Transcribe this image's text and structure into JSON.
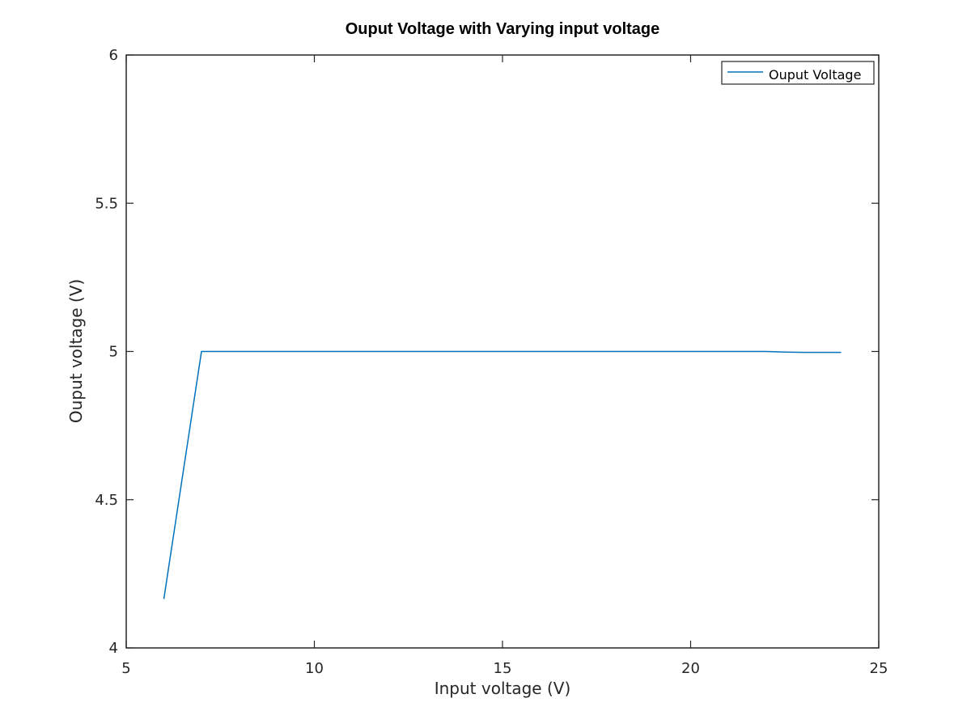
{
  "chart_data": {
    "type": "line",
    "title": "Ouput Voltage with Varying input voltage",
    "xlabel": "Input voltage (V)",
    "ylabel": "Ouput voltage (V)",
    "xlim": [
      5,
      25
    ],
    "ylim": [
      4,
      6
    ],
    "xticks": [
      5,
      10,
      15,
      20,
      25
    ],
    "yticks": [
      4,
      4.5,
      5,
      5.5,
      6
    ],
    "grid": false,
    "legend_position": "top-right",
    "series": [
      {
        "name": "Ouput Voltage",
        "color": "#0072BD",
        "x": [
          6,
          7,
          8,
          10,
          12,
          14,
          16,
          18,
          20,
          22,
          22.5,
          23,
          24
        ],
        "y": [
          4.165,
          5.0,
          5.0,
          5.0,
          5.0,
          5.0,
          5.0,
          5.0,
          5.0,
          5.0,
          4.998,
          4.997,
          4.997
        ]
      }
    ]
  }
}
